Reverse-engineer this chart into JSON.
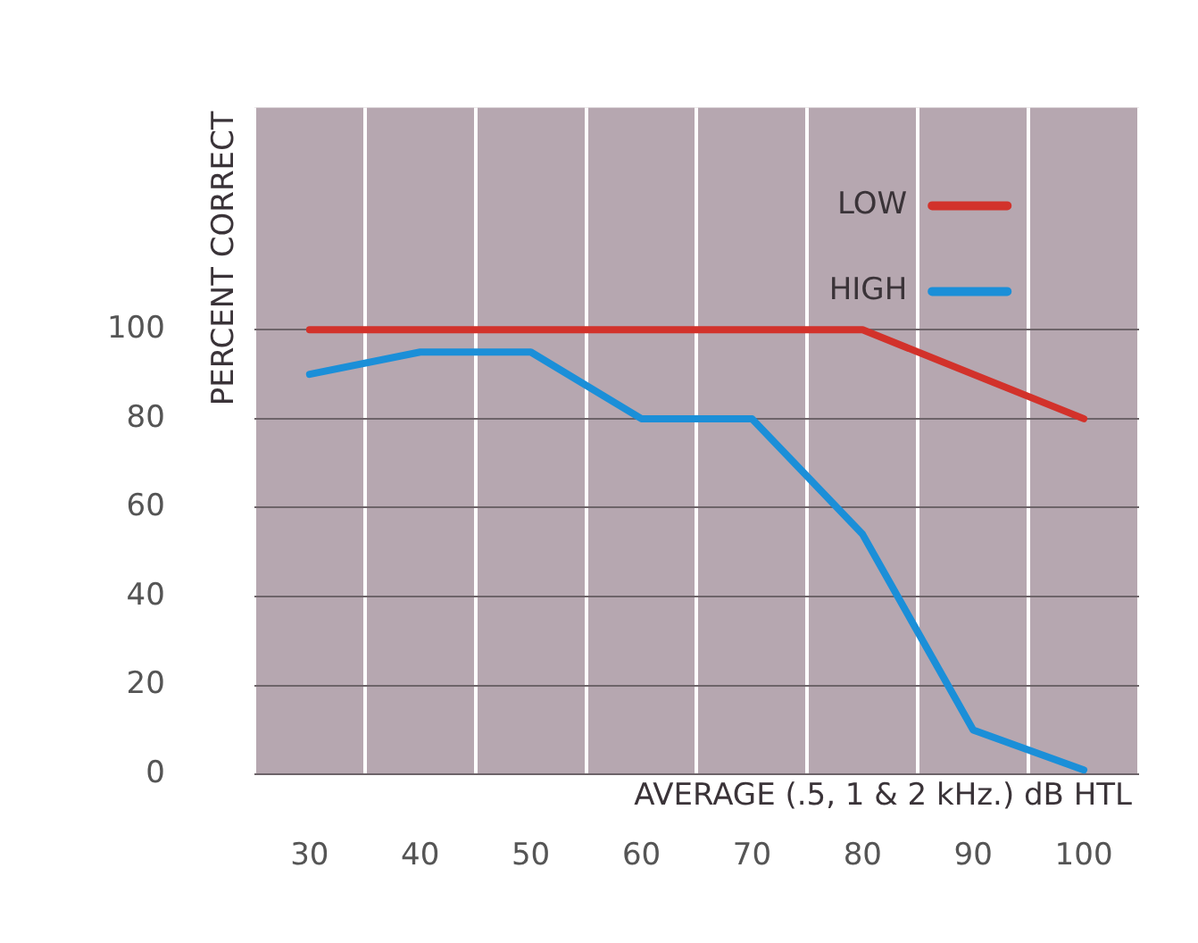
{
  "chart_data": {
    "type": "line",
    "xlabel": "AVERAGE (.5, 1 & 2 kHz.) dB HTL",
    "ylabel": "PERCENT CORRECT",
    "categories": [
      "30",
      "40",
      "50",
      "60",
      "70",
      "80",
      "90",
      "100"
    ],
    "series": [
      {
        "name": "LOW",
        "color": "#d2322b",
        "values": [
          100,
          100,
          100,
          100,
          100,
          100,
          90,
          80
        ]
      },
      {
        "name": "HIGH",
        "color": "#1b8fd8",
        "values": [
          90,
          95,
          95,
          80,
          80,
          54,
          10,
          1
        ]
      }
    ],
    "ylim": [
      0,
      150
    ],
    "yticks": [
      0,
      20,
      40,
      60,
      80,
      100
    ],
    "grid": true,
    "legend": "top right",
    "marker": "none",
    "line_style": "solid"
  }
}
